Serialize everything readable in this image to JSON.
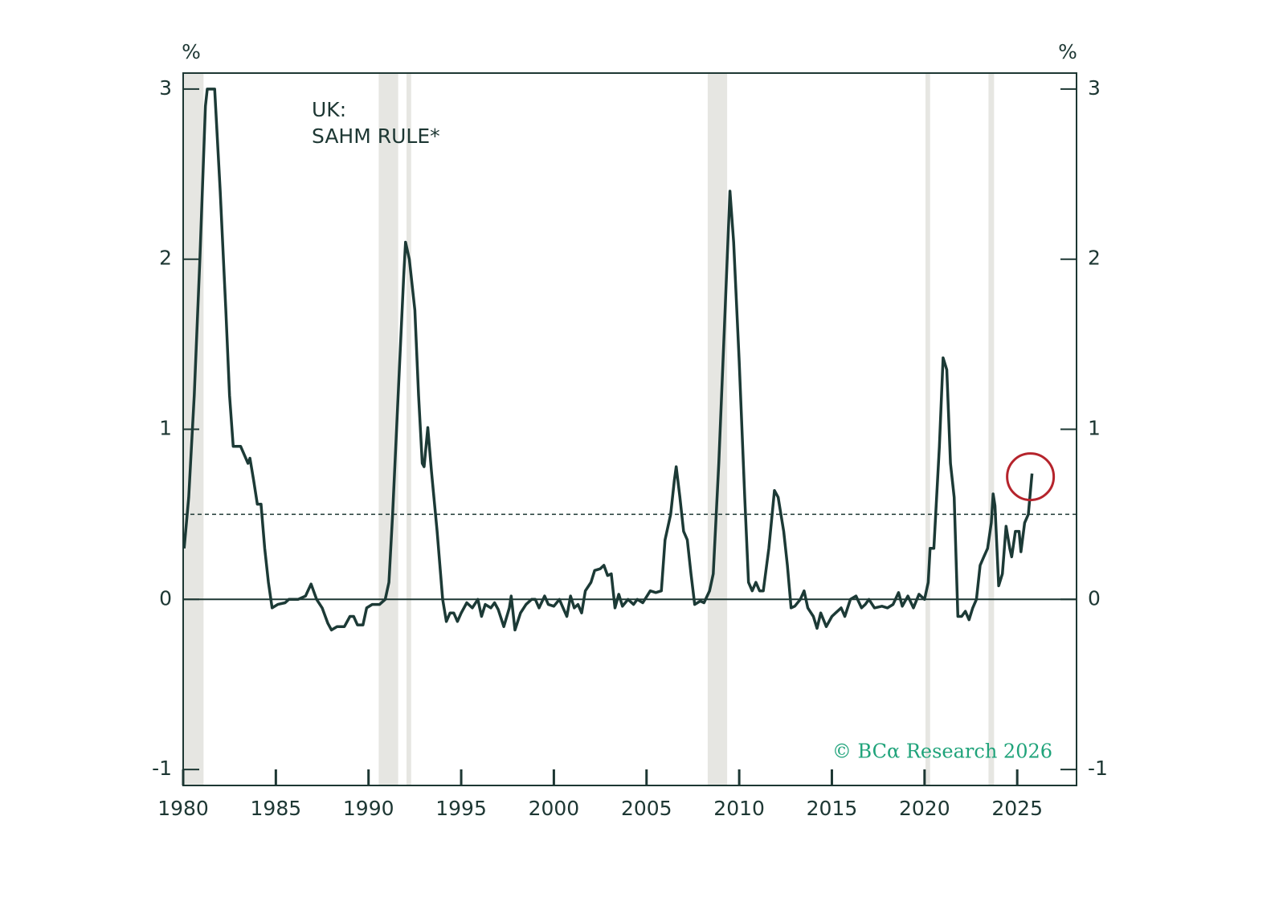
{
  "chart_data": {
    "type": "line",
    "title": [
      "UK:",
      "SAHM RULE*"
    ],
    "y_unit": "%",
    "y2_unit": "%",
    "source": "© BCα Research 2026",
    "xlim": [
      1980,
      2028.2
    ],
    "xticks": [
      1980,
      1985,
      1990,
      1995,
      2000,
      2005,
      2010,
      2015,
      2020,
      2025
    ],
    "ylim": [
      -1.094,
      3.094
    ],
    "yticks": [
      -1,
      0,
      1,
      2,
      3
    ],
    "y2lim": [
      -1.094,
      3.094
    ],
    "y2ticks": [
      -1,
      0,
      1,
      2,
      3
    ],
    "threshold": 0.5,
    "recessions": [
      [
        1980,
        1981.1
      ],
      [
        1990.55,
        1991.6
      ],
      [
        1992.05,
        1992.3
      ],
      [
        2008.3,
        2009.35
      ],
      [
        2020.05,
        2020.3
      ],
      [
        2023.45,
        2023.75
      ]
    ],
    "recession_color": "#e6e6e2",
    "highlight_color": "#b5242c",
    "x": [
      1980.05,
      1980.3,
      1980.6,
      1980.9,
      1981.2,
      1981.3,
      1981.7,
      1982.0,
      1982.3,
      1982.5,
      1982.7,
      1982.9,
      1983.1,
      1983.3,
      1983.5,
      1983.6,
      1983.8,
      1984.0,
      1984.2,
      1984.4,
      1984.6,
      1984.8,
      1985.1,
      1985.5,
      1985.7,
      1986.2,
      1986.6,
      1986.9,
      1987.2,
      1987.5,
      1987.8,
      1988.0,
      1988.3,
      1988.7,
      1989.0,
      1989.2,
      1989.4,
      1989.7,
      1989.9,
      1990.2,
      1990.6,
      1990.9,
      1991.1,
      1991.3,
      1991.6,
      1991.9,
      1992.0,
      1992.2,
      1992.5,
      1992.7,
      1992.9,
      1993.0,
      1993.2,
      1993.4,
      1993.7,
      1994.0,
      1994.2,
      1994.4,
      1994.6,
      1994.8,
      1995.0,
      1995.3,
      1995.6,
      1995.9,
      1996.1,
      1996.3,
      1996.6,
      1996.8,
      1997.0,
      1997.3,
      1997.6,
      1997.7,
      1997.9,
      1998.2,
      1998.5,
      1998.8,
      1999.0,
      1999.2,
      1999.5,
      1999.7,
      2000.0,
      2000.3,
      2000.5,
      2000.7,
      2000.9,
      2001.1,
      2001.3,
      2001.5,
      2001.7,
      2002.0,
      2002.2,
      2002.5,
      2002.7,
      2002.9,
      2003.1,
      2003.3,
      2003.5,
      2003.7,
      2004.0,
      2004.3,
      2004.5,
      2004.8,
      2005.2,
      2005.5,
      2005.8,
      2006.0,
      2006.3,
      2006.5,
      2006.6,
      2006.8,
      2007.0,
      2007.2,
      2007.4,
      2007.6,
      2007.9,
      2008.1,
      2008.4,
      2008.6,
      2008.9,
      2009.2,
      2009.5,
      2009.7,
      2010.0,
      2010.3,
      2010.5,
      2010.7,
      2010.9,
      2011.1,
      2011.3,
      2011.6,
      2011.9,
      2012.1,
      2012.4,
      2012.6,
      2012.8,
      2013.0,
      2013.3,
      2013.5,
      2013.7,
      2014.0,
      2014.2,
      2014.4,
      2014.7,
      2015.0,
      2015.2,
      2015.5,
      2015.7,
      2016.0,
      2016.3,
      2016.6,
      2016.8,
      2017.0,
      2017.3,
      2017.7,
      2018.0,
      2018.3,
      2018.6,
      2018.8,
      2019.1,
      2019.4,
      2019.7,
      2020.0,
      2020.2,
      2020.3,
      2020.5,
      2020.8,
      2021.0,
      2021.2,
      2021.4,
      2021.6,
      2021.8,
      2022.0,
      2022.2,
      2022.4,
      2022.6,
      2022.8,
      2023.0,
      2023.2,
      2023.4,
      2023.6,
      2023.7,
      2023.8,
      2024.0,
      2024.2,
      2024.4,
      2024.6,
      2024.7,
      2024.9,
      2025.1,
      2025.2,
      2025.4,
      2025.6,
      2025.8
    ],
    "series": [
      {
        "name": "UK Sahm rule",
        "color": "#1c3a36",
        "values": [
          0.3,
          0.6,
          1.2,
          2.0,
          2.9,
          3.0,
          3.0,
          2.4,
          1.7,
          1.2,
          0.9,
          0.9,
          0.9,
          0.85,
          0.8,
          0.83,
          0.7,
          0.56,
          0.56,
          0.3,
          0.1,
          -0.05,
          -0.03,
          -0.02,
          0,
          0,
          0.02,
          0.09,
          0,
          -0.05,
          -0.14,
          -0.18,
          -0.16,
          -0.16,
          -0.1,
          -0.1,
          -0.15,
          -0.15,
          -0.05,
          -0.03,
          -0.03,
          0.0,
          0.1,
          0.5,
          1.2,
          1.9,
          2.1,
          2.0,
          1.7,
          1.2,
          0.8,
          0.78,
          1.01,
          0.75,
          0.4,
          0.0,
          -0.13,
          -0.08,
          -0.08,
          -0.13,
          -0.08,
          -0.02,
          -0.05,
          0.0,
          -0.1,
          -0.03,
          -0.05,
          -0.02,
          -0.06,
          -0.16,
          -0.05,
          0.02,
          -0.18,
          -0.08,
          -0.03,
          0.0,
          0.0,
          -0.05,
          0.02,
          -0.03,
          -0.04,
          0.0,
          -0.05,
          -0.1,
          0.02,
          -0.05,
          -0.03,
          -0.08,
          0.05,
          0.1,
          0.17,
          0.18,
          0.2,
          0.14,
          0.15,
          -0.05,
          0.03,
          -0.04,
          0.0,
          -0.03,
          0.0,
          -0.02,
          0.05,
          0.04,
          0.05,
          0.35,
          0.5,
          0.7,
          0.78,
          0.6,
          0.4,
          0.35,
          0.15,
          -0.03,
          -0.01,
          -0.02,
          0.05,
          0.15,
          0.8,
          1.6,
          2.4,
          2.1,
          1.4,
          0.6,
          0.1,
          0.05,
          0.1,
          0.05,
          0.05,
          0.3,
          0.64,
          0.6,
          0.4,
          0.2,
          -0.05,
          -0.04,
          0.0,
          0.05,
          -0.05,
          -0.1,
          -0.17,
          -0.08,
          -0.16,
          -0.1,
          -0.08,
          -0.05,
          -0.1,
          0.0,
          0.02,
          -0.05,
          -0.03,
          0.0,
          -0.05,
          -0.04,
          -0.05,
          -0.03,
          0.04,
          -0.04,
          0.02,
          -0.05,
          0.03,
          0.0,
          0.1,
          0.3,
          0.3,
          0.9,
          1.42,
          1.35,
          0.8,
          0.6,
          -0.1,
          -0.1,
          -0.07,
          -0.12,
          -0.05,
          0.0,
          0.2,
          0.25,
          0.3,
          0.45,
          0.62,
          0.55,
          0.08,
          0.15,
          0.43,
          0.3,
          0.25,
          0.4,
          0.4,
          0.28,
          0.45,
          0.5,
          0.74
        ]
      }
    ]
  }
}
